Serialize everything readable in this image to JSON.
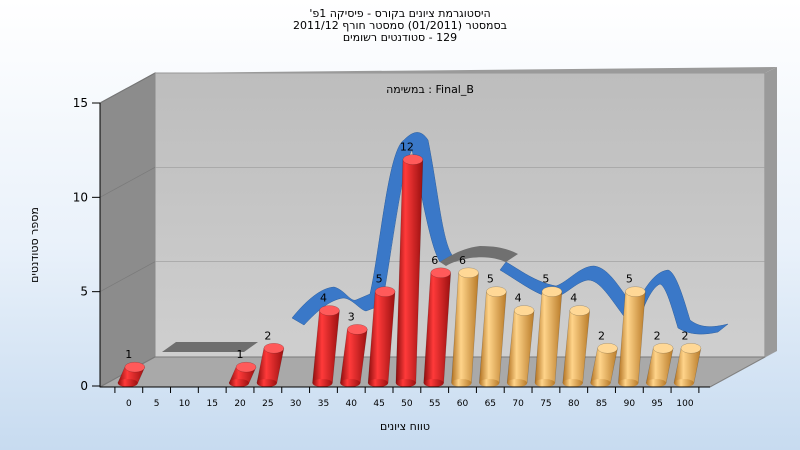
{
  "title_lines": [
    "היסטוגרמת ציונים בקורס - פיסיקה 1פ'",
    "בסמסטר  (01/2011)  סמסטר חורף 2011/12",
    "129 - סטודנטים רשומים"
  ],
  "chart_data": {
    "type": "bar",
    "annotation": "במשימה : Final_B",
    "xlabel": "טווח ציונים",
    "ylabel": "מספר סטודנטים",
    "ylim": [
      0,
      15
    ],
    "yticks": [
      0,
      5,
      10,
      15
    ],
    "categories": [
      "0",
      "5",
      "10",
      "15",
      "20",
      "25",
      "30",
      "35",
      "40",
      "45",
      "50",
      "55",
      "60",
      "65",
      "70",
      "75",
      "80",
      "85",
      "90",
      "95",
      "100"
    ],
    "series": [
      {
        "color": "#e01a1a",
        "values": [
          1,
          0,
          0,
          0,
          1,
          2,
          0,
          4,
          3,
          5,
          12,
          6,
          0,
          0,
          0,
          0,
          0,
          0,
          0,
          0,
          0
        ]
      },
      {
        "color": "#f0b050",
        "values": [
          0,
          0,
          0,
          0,
          0,
          0,
          0,
          0,
          0,
          0,
          0,
          0,
          6,
          5,
          4,
          5,
          4,
          2,
          5,
          2,
          2
        ]
      }
    ],
    "grid": true
  },
  "colors": {
    "wall_back": "#c4c4c4",
    "wall_side": "#888888",
    "floor": "#b0b0b0",
    "ribbon_blue": "#3a78c8",
    "ribbon_gray": "#6a6a6a"
  }
}
